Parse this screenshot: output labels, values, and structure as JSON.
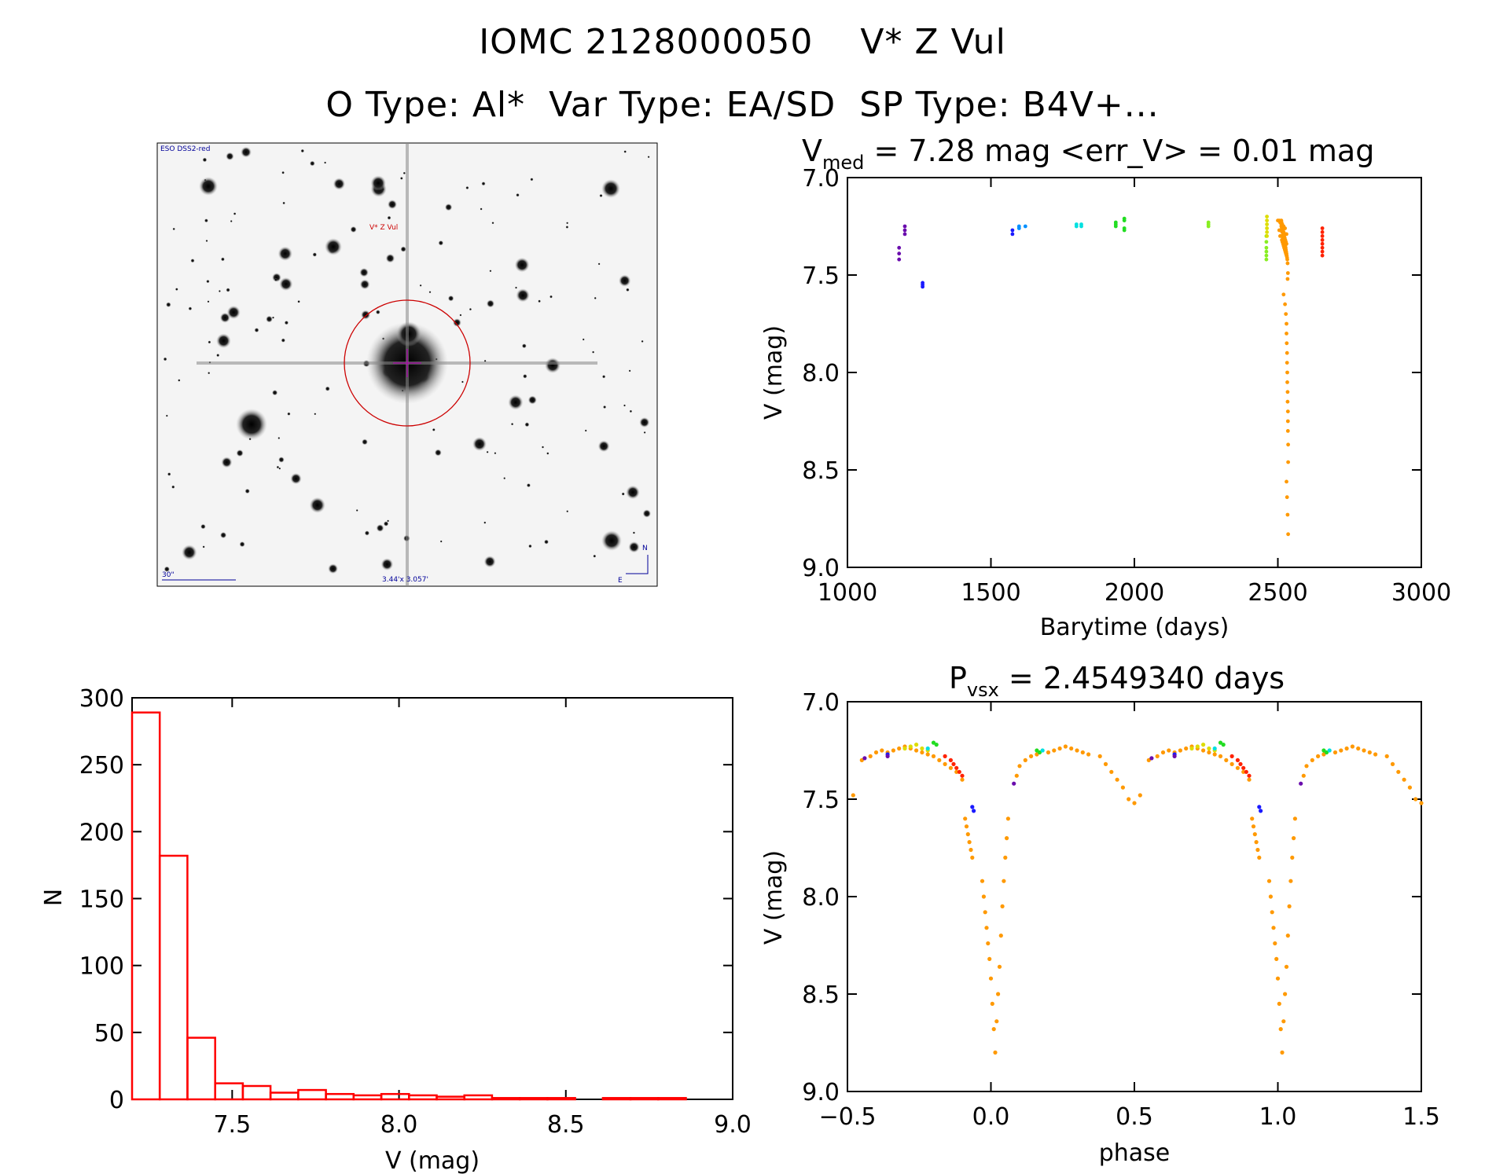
{
  "header": {
    "title": "IOMC 2128000050    V* Z Vul",
    "subtitle": "O Type: Al*  Var Type: EA/SD  SP Type: B4V+..."
  },
  "sky_image": {
    "label_top_left": "ESO DSS2-red",
    "target_label": "V* Z Vul",
    "scale_label": "30\"",
    "size_label": "3.44'x 3.057'",
    "compass_n": "N",
    "compass_e": "E",
    "colors": {
      "circle": "#cc0000",
      "crosshair": "#aa00aa",
      "annotation": "#000099"
    }
  },
  "colors": {
    "histogram": "#ff0000",
    "seasons": [
      "#6a0dad",
      "#1a1aff",
      "#0090ff",
      "#00e0e0",
      "#22dd22",
      "#88ee22",
      "#dddd00",
      "#ff9900",
      "#ff2200"
    ]
  },
  "chart_data": [
    {
      "id": "lightcurve",
      "type": "scatter",
      "title_main": "V",
      "title_sub": "med",
      "title_rest": " = 7.28 mag <err_V> = 0.01 mag",
      "xlabel": "Barytime (days)",
      "ylabel": "V (mag)",
      "xlim": [
        1000,
        3000
      ],
      "ylim": [
        7.0,
        9.0
      ],
      "y_inverted": true,
      "xticks": [
        "1000",
        "1500",
        "2000",
        "2500",
        "3000"
      ],
      "yticks": [
        "7.0",
        "7.5",
        "8.0",
        "8.5",
        "9.0"
      ],
      "series": [
        {
          "color_index": 0,
          "x": [
            1180,
            1180,
            1180,
            1200,
            1200,
            1200
          ],
          "y": [
            7.36,
            7.39,
            7.42,
            7.25,
            7.27,
            7.29
          ]
        },
        {
          "color_index": 1,
          "x": [
            1262,
            1262,
            1262,
            1575,
            1575
          ],
          "y": [
            7.54,
            7.55,
            7.56,
            7.27,
            7.29
          ]
        },
        {
          "color_index": 2,
          "x": [
            1598,
            1598,
            1620
          ],
          "y": [
            7.25,
            7.26,
            7.25
          ]
        },
        {
          "color_index": 3,
          "x": [
            1798,
            1798,
            1815,
            1815
          ],
          "y": [
            7.24,
            7.25,
            7.24,
            7.25
          ]
        },
        {
          "color_index": 4,
          "x": [
            1935,
            1935,
            1935,
            1965,
            1965,
            1965,
            1965
          ],
          "y": [
            7.23,
            7.24,
            7.25,
            7.21,
            7.22,
            7.26,
            7.27
          ]
        },
        {
          "color_index": 5,
          "x": [
            2258,
            2258,
            2258,
            2460,
            2460,
            2460,
            2460,
            2460,
            2460
          ],
          "y": [
            7.23,
            7.24,
            7.25,
            7.3,
            7.33,
            7.36,
            7.38,
            7.4,
            7.42
          ]
        },
        {
          "color_index": 6,
          "x": [
            2462,
            2462,
            2462,
            2462,
            2462,
            2462
          ],
          "y": [
            7.2,
            7.22,
            7.24,
            7.26,
            7.28,
            7.3
          ]
        },
        {
          "color_index": 7,
          "x": [
            2500,
            2505,
            2508,
            2510,
            2512,
            2515,
            2518,
            2520,
            2522,
            2525,
            2505,
            2510,
            2515,
            2520,
            2525,
            2530,
            2508,
            2512,
            2518,
            2522,
            2514,
            2516,
            2518,
            2520,
            2522,
            2524,
            2526,
            2528,
            2530,
            2512,
            2514,
            2516,
            2518,
            2520,
            2522,
            2524,
            2526,
            2528,
            2530,
            2512,
            2513,
            2515,
            2516,
            2517,
            2518,
            2519,
            2520,
            2521,
            2522,
            2523,
            2524,
            2525,
            2526,
            2527,
            2528,
            2529,
            2530,
            2531,
            2532,
            2533,
            2534,
            2520,
            2525,
            2528,
            2530,
            2530,
            2531,
            2532,
            2532,
            2533,
            2533,
            2534,
            2534,
            2535,
            2535,
            2535,
            2536,
            2536
          ],
          "y": [
            7.22,
            7.22,
            7.23,
            7.23,
            7.24,
            7.24,
            7.25,
            7.25,
            7.26,
            7.26,
            7.27,
            7.27,
            7.28,
            7.28,
            7.29,
            7.29,
            7.3,
            7.3,
            7.31,
            7.31,
            7.32,
            7.33,
            7.34,
            7.35,
            7.36,
            7.37,
            7.38,
            7.39,
            7.4,
            7.25,
            7.26,
            7.27,
            7.28,
            7.29,
            7.3,
            7.31,
            7.32,
            7.33,
            7.34,
            7.22,
            7.23,
            7.24,
            7.25,
            7.26,
            7.27,
            7.28,
            7.29,
            7.3,
            7.31,
            7.32,
            7.33,
            7.34,
            7.35,
            7.36,
            7.37,
            7.38,
            7.39,
            7.4,
            7.41,
            7.42,
            7.44,
            7.6,
            7.65,
            7.7,
            7.75,
            7.8,
            7.85,
            7.9,
            7.95,
            8.0,
            8.05,
            8.1,
            8.15,
            8.2,
            8.25,
            8.3,
            8.37,
            8.46
          ]
        },
        {
          "color_index": 7,
          "x": [
            2530,
            2532,
            2534,
            2536,
            2535,
            2534
          ],
          "y": [
            8.56,
            8.64,
            8.73,
            8.83,
            7.49,
            7.52
          ]
        },
        {
          "color_index": 8,
          "x": [
            2655,
            2655,
            2655,
            2655,
            2655,
            2655,
            2655,
            2655
          ],
          "y": [
            7.26,
            7.28,
            7.3,
            7.32,
            7.34,
            7.36,
            7.38,
            7.4
          ]
        }
      ]
    },
    {
      "id": "histogram",
      "type": "bar",
      "xlabel": "V (mag)",
      "ylabel": "N",
      "xlim": [
        7.2,
        9.0
      ],
      "ylim": [
        0,
        300
      ],
      "xticks": [
        "7.5",
        "8.0",
        "8.5",
        "9.0"
      ],
      "yticks": [
        "0",
        "50",
        "100",
        "150",
        "200",
        "250",
        "300"
      ],
      "bin_edges": [
        7.2,
        7.283,
        7.366,
        7.449,
        7.532,
        7.615,
        7.698,
        7.781,
        7.864,
        7.947,
        8.03,
        8.113,
        8.196,
        8.279,
        8.362,
        8.445,
        8.528,
        8.611,
        8.694,
        8.777,
        8.86
      ],
      "values": [
        289,
        182,
        46,
        12,
        10,
        5,
        7,
        4,
        3,
        4,
        3,
        2,
        3,
        1,
        1,
        1,
        0,
        1,
        1,
        1
      ]
    },
    {
      "id": "phased",
      "type": "scatter",
      "title_main": "P",
      "title_sub": "vsx",
      "title_rest": " = 2.4549340 days",
      "xlabel": "phase",
      "ylabel": "V (mag)",
      "xlim": [
        -0.5,
        1.5
      ],
      "ylim": [
        7.0,
        9.0
      ],
      "y_inverted": true,
      "period": 2.454934,
      "xticks": [
        "−0.5",
        "0.0",
        "0.5",
        "1.0",
        "1.5"
      ],
      "yticks": [
        "7.0",
        "7.5",
        "8.0",
        "8.5",
        "9.0"
      ],
      "series": [
        {
          "color_index": 7,
          "x": [
            -0.48,
            -0.45,
            -0.42,
            -0.4,
            -0.38,
            -0.36,
            -0.34,
            -0.32,
            -0.3,
            -0.28,
            -0.26,
            -0.24,
            -0.22,
            -0.2,
            -0.18,
            -0.16,
            -0.14,
            -0.12,
            -0.1,
            -0.09,
            -0.085,
            -0.08,
            -0.075,
            -0.07,
            -0.065,
            0.09,
            0.1,
            0.12,
            0.14,
            0.16,
            0.2,
            0.22,
            0.24,
            0.26,
            0.28,
            0.3,
            0.32,
            0.34,
            0.38,
            0.4,
            0.42,
            0.44,
            0.46,
            0.48,
            0.5
          ],
          "y": [
            7.48,
            7.3,
            7.28,
            7.26,
            7.25,
            7.26,
            7.25,
            7.24,
            7.23,
            7.24,
            7.25,
            7.26,
            7.27,
            7.28,
            7.3,
            7.32,
            7.34,
            7.36,
            7.4,
            7.6,
            7.64,
            7.68,
            7.72,
            7.76,
            7.8,
            7.38,
            7.33,
            7.3,
            7.28,
            7.27,
            7.26,
            7.25,
            7.24,
            7.23,
            7.24,
            7.25,
            7.26,
            7.27,
            7.28,
            7.32,
            7.36,
            7.4,
            7.44,
            7.5,
            7.52
          ]
        },
        {
          "color_index": 7,
          "x": [
            -0.03,
            -0.025,
            -0.02,
            -0.015,
            -0.01,
            -0.005,
            0.0,
            0.005,
            0.01,
            0.015,
            0.02,
            0.025,
            0.03,
            0.035,
            0.04,
            0.045,
            0.05,
            0.055,
            0.06
          ],
          "y": [
            7.92,
            8.0,
            8.08,
            8.16,
            8.24,
            8.32,
            8.42,
            8.55,
            8.68,
            8.8,
            8.64,
            8.5,
            8.36,
            8.2,
            8.05,
            7.92,
            7.8,
            7.7,
            7.6
          ]
        },
        {
          "color_index": 6,
          "x": [
            -0.3,
            -0.28,
            -0.26,
            -0.24,
            -0.22
          ],
          "y": [
            7.24,
            7.23,
            7.22,
            7.24,
            7.25
          ]
        },
        {
          "color_index": 4,
          "x": [
            -0.2,
            -0.19,
            0.16,
            0.17
          ],
          "y": [
            7.21,
            7.22,
            7.25,
            7.26
          ]
        },
        {
          "color_index": 3,
          "x": [
            -0.22,
            0.18
          ],
          "y": [
            7.24,
            7.25
          ]
        },
        {
          "color_index": 8,
          "x": [
            -0.16,
            -0.14,
            -0.13,
            -0.12,
            -0.11,
            -0.1
          ],
          "y": [
            7.28,
            7.3,
            7.32,
            7.34,
            7.36,
            7.38
          ]
        },
        {
          "color_index": 1,
          "x": [
            -0.065,
            -0.06,
            -0.36
          ],
          "y": [
            7.54,
            7.56,
            7.27
          ]
        },
        {
          "color_index": 0,
          "x": [
            0.08,
            -0.36,
            -0.44
          ],
          "y": [
            7.42,
            7.28,
            7.29
          ]
        }
      ]
    }
  ]
}
